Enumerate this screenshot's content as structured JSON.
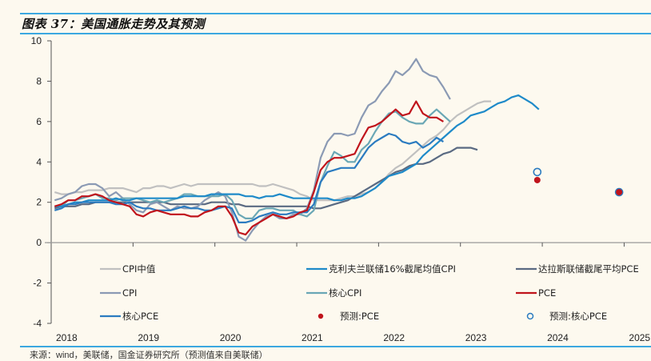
{
  "title": "图表 37：美国通胀走势及其预测",
  "source": "来源：wind，美联储，国金证券研究所（预测值来自美联储）",
  "chart_data": {
    "type": "line",
    "title": "图表 37：美国通胀走势及其预测",
    "xlabel": "",
    "ylabel": "",
    "ylim": [
      -4,
      10
    ],
    "yticks": [
      -4,
      -2,
      0,
      2,
      4,
      6,
      8,
      10
    ],
    "xlim": [
      2018,
      2025.25
    ],
    "xticks": [
      "2018",
      "2019",
      "2020",
      "2021",
      "2022",
      "2023",
      "2024",
      "2025"
    ],
    "legend_position": "bottom",
    "x_start": "2018-01",
    "x_freq": "monthly",
    "series": [
      {
        "name": "CPI中值",
        "color": "#c0c0c0",
        "values": [
          2.5,
          2.4,
          2.4,
          2.5,
          2.5,
          2.6,
          2.6,
          2.6,
          2.7,
          2.7,
          2.7,
          2.6,
          2.5,
          2.7,
          2.7,
          2.8,
          2.8,
          2.7,
          2.8,
          2.9,
          2.8,
          2.9,
          2.9,
          2.9,
          2.9,
          2.9,
          2.9,
          2.9,
          2.9,
          2.9,
          2.8,
          2.8,
          2.9,
          2.8,
          2.7,
          2.6,
          2.4,
          2.3,
          2.1,
          2.1,
          2.1,
          2.1,
          2.2,
          2.3,
          2.3,
          2.4,
          2.5,
          2.7,
          3.0,
          3.4,
          3.7,
          3.9,
          4.2,
          4.5,
          4.8,
          5.1,
          5.3,
          5.6,
          6.0,
          6.3,
          6.5,
          6.7,
          6.9,
          7.0,
          7.0
        ]
      },
      {
        "name": "克利夫兰联储16%截尾均值CPI",
        "color": "#1e8ac9",
        "values": [
          1.8,
          1.8,
          1.9,
          2.0,
          2.0,
          2.1,
          2.1,
          2.1,
          2.1,
          2.2,
          2.1,
          2.1,
          2.2,
          2.2,
          2.2,
          2.2,
          2.2,
          2.2,
          2.2,
          2.3,
          2.3,
          2.3,
          2.3,
          2.4,
          2.4,
          2.4,
          2.4,
          2.4,
          2.3,
          2.3,
          2.2,
          2.3,
          2.3,
          2.4,
          2.3,
          2.2,
          2.2,
          2.2,
          2.2,
          2.2,
          2.2,
          2.1,
          2.1,
          2.2,
          2.2,
          2.3,
          2.5,
          2.7,
          3.0,
          3.3,
          3.4,
          3.5,
          3.7,
          3.9,
          4.3,
          4.6,
          4.9,
          5.2,
          5.5,
          5.8,
          6.0,
          6.3,
          6.4,
          6.5,
          6.7,
          6.9,
          7.0,
          7.2,
          7.3,
          7.1,
          6.9,
          6.6
        ]
      },
      {
        "name": "达拉斯联储截尾平均PCE",
        "color": "#5a6a82",
        "values": [
          1.7,
          1.8,
          1.8,
          1.8,
          1.9,
          1.9,
          2.0,
          2.0,
          2.0,
          2.0,
          2.0,
          2.0,
          2.0,
          2.0,
          2.0,
          2.0,
          2.0,
          1.9,
          1.9,
          1.9,
          1.9,
          1.9,
          1.9,
          2.0,
          2.0,
          2.0,
          1.9,
          1.9,
          1.8,
          1.8,
          1.8,
          1.8,
          1.8,
          1.8,
          1.8,
          1.8,
          1.8,
          1.8,
          1.7,
          1.7,
          1.8,
          1.9,
          2.0,
          2.1,
          2.3,
          2.5,
          2.7,
          2.9,
          3.1,
          3.3,
          3.5,
          3.6,
          3.8,
          3.9,
          3.9,
          4.0,
          4.2,
          4.4,
          4.5,
          4.7,
          4.7,
          4.7,
          4.6
        ]
      },
      {
        "name": "CPI",
        "color": "#8b9ab4",
        "values": [
          2.1,
          2.2,
          2.4,
          2.5,
          2.8,
          2.9,
          2.9,
          2.7,
          2.3,
          2.5,
          2.2,
          1.9,
          1.6,
          1.5,
          1.9,
          2.0,
          1.8,
          1.6,
          1.8,
          1.7,
          1.7,
          1.8,
          2.1,
          2.3,
          2.5,
          2.3,
          1.5,
          0.3,
          0.1,
          0.6,
          1.0,
          1.3,
          1.4,
          1.2,
          1.2,
          1.4,
          1.4,
          1.7,
          2.6,
          4.2,
          5.0,
          5.4,
          5.4,
          5.3,
          5.4,
          6.2,
          6.8,
          7.0,
          7.5,
          7.9,
          8.5,
          8.3,
          8.6,
          9.1,
          8.5,
          8.3,
          8.2,
          7.7,
          7.1
        ]
      },
      {
        "name": "核心CPI",
        "color": "#6aa7b5",
        "values": [
          1.8,
          1.8,
          2.1,
          2.1,
          2.2,
          2.3,
          2.4,
          2.2,
          2.2,
          2.1,
          2.2,
          2.2,
          2.2,
          2.1,
          2.0,
          2.1,
          2.0,
          2.1,
          2.2,
          2.4,
          2.4,
          2.3,
          2.3,
          2.3,
          2.3,
          2.4,
          2.1,
          1.4,
          1.2,
          1.2,
          1.6,
          1.7,
          1.7,
          1.6,
          1.6,
          1.6,
          1.4,
          1.3,
          1.6,
          3.0,
          3.8,
          4.5,
          4.3,
          4.0,
          4.0,
          4.6,
          4.9,
          5.5,
          6.0,
          6.4,
          6.5,
          6.2,
          6.0,
          5.9,
          5.9,
          6.3,
          6.6,
          6.3,
          6.0
        ]
      },
      {
        "name": "PCE",
        "color": "#c0141c",
        "values": [
          1.8,
          1.9,
          2.1,
          2.1,
          2.3,
          2.3,
          2.4,
          2.3,
          2.1,
          2.0,
          1.9,
          1.8,
          1.4,
          1.3,
          1.5,
          1.6,
          1.5,
          1.4,
          1.4,
          1.4,
          1.3,
          1.3,
          1.5,
          1.6,
          1.8,
          1.8,
          1.3,
          0.5,
          0.4,
          0.8,
          1.0,
          1.2,
          1.4,
          1.3,
          1.2,
          1.3,
          1.5,
          1.6,
          2.5,
          3.6,
          4.0,
          4.2,
          4.2,
          4.3,
          4.4,
          5.1,
          5.7,
          5.8,
          6.0,
          6.3,
          6.6,
          6.3,
          6.4,
          7.0,
          6.4,
          6.2,
          6.2,
          6.0
        ]
      },
      {
        "name": "核心PCE",
        "color": "#2b7bc0",
        "values": [
          1.6,
          1.7,
          1.9,
          1.9,
          2.0,
          2.0,
          2.0,
          2.0,
          2.0,
          1.9,
          1.9,
          2.0,
          1.8,
          1.7,
          1.7,
          1.6,
          1.6,
          1.6,
          1.7,
          1.8,
          1.7,
          1.7,
          1.6,
          1.6,
          1.7,
          1.8,
          1.7,
          1.0,
          1.0,
          1.1,
          1.3,
          1.4,
          1.5,
          1.4,
          1.4,
          1.5,
          1.5,
          1.5,
          1.9,
          3.0,
          3.5,
          3.6,
          3.7,
          3.7,
          3.7,
          4.2,
          4.7,
          5.0,
          5.2,
          5.4,
          5.3,
          5.0,
          4.9,
          5.0,
          4.7,
          4.9,
          5.2,
          5.0
        ]
      }
    ],
    "forecasts": [
      {
        "name": "预测:PCE",
        "color": "#c0141c",
        "style": "filled",
        "points": [
          {
            "x": "2023-12",
            "y": 3.1
          },
          {
            "x": "2024-12",
            "y": 2.5
          }
        ]
      },
      {
        "name": "预测:核心PCE",
        "color": "#2b7bc0",
        "style": "hollow",
        "points": [
          {
            "x": "2023-12",
            "y": 3.5
          },
          {
            "x": "2024-12",
            "y": 2.5
          }
        ]
      }
    ],
    "legend": [
      [
        "CPI中值",
        "克利夫兰联储16%截尾均值CPI",
        "达拉斯联储截尾平均PCE"
      ],
      [
        "CPI",
        "核心CPI",
        "PCE"
      ],
      [
        "核心PCE",
        "预测:PCE",
        "预测:核心PCE"
      ]
    ]
  }
}
